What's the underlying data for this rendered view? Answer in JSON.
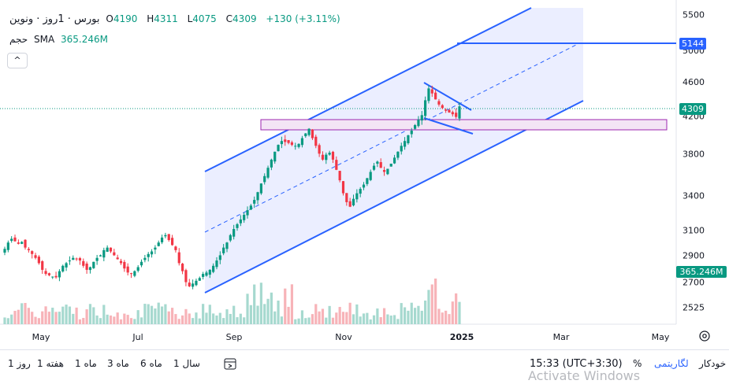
{
  "header": {
    "symbol": "بورس · 1روز · ونوین",
    "ohlc": {
      "O": "4190",
      "H": "4311",
      "L": "4075",
      "C": "4309"
    },
    "change": "+130 (+3.11%)",
    "volume_label": "حجم",
    "sma_label": "SMA",
    "sma_value": "365.246M",
    "toggle_glyph": "^"
  },
  "price_axis": {
    "ticks": [
      "5500",
      "5000",
      "4600",
      "4200",
      "3800",
      "3400",
      "3100",
      "2900",
      "2700",
      "2525"
    ],
    "last_price_label": "4309",
    "target_label": "5144",
    "volume_label": "365.246M"
  },
  "time_axis": {
    "ticks": [
      "May",
      "Jul",
      "Sep",
      "Nov",
      "2025",
      "Mar",
      "May"
    ]
  },
  "bottom_bar": {
    "timeframes": [
      "1 روز",
      "1 هفته",
      "1 ماه",
      "3 ماه",
      "6 ماه",
      "1 سال"
    ],
    "time": "15:33 (UTC+3:30)",
    "percent": "%",
    "log": "لگاریتمی",
    "auto": "خودکار"
  },
  "watermark": "Activate Windows",
  "colors": {
    "up": "#089981",
    "down": "#f23645",
    "channel": "#2962ff",
    "channel_fill": "#e8ebff",
    "zone_fill": "#f3e5f5",
    "zone_stroke": "#9c27b0",
    "last_price_line": "#089981"
  },
  "chart_data": {
    "type": "candlestick",
    "x_ticks": [
      "May",
      "Jul",
      "Sep",
      "Nov",
      "2025",
      "Mar",
      "May"
    ],
    "y_scale": "log",
    "ylim": [
      2450,
      5600
    ],
    "y_ticks": [
      5500,
      5000,
      4600,
      4200,
      3800,
      3400,
      3100,
      2900,
      2700,
      2525
    ],
    "last": {
      "open": 4190,
      "high": 4311,
      "low": 4075,
      "close": 4309,
      "change": 130,
      "change_pct": 3.11
    },
    "target_level": 5144,
    "closes": [
      2950,
      3000,
      3030,
      3010,
      2990,
      3005,
      2960,
      2940,
      2910,
      2880,
      2840,
      2790,
      2760,
      2750,
      2740,
      2735,
      2780,
      2820,
      2840,
      2860,
      2880,
      2870,
      2860,
      2820,
      2790,
      2810,
      2850,
      2880,
      2900,
      2940,
      2960,
      2930,
      2900,
      2870,
      2840,
      2800,
      2770,
      2760,
      2780,
      2810,
      2850,
      2880,
      2910,
      2930,
      2960,
      3000,
      3040,
      3060,
      3020,
      2980,
      2940,
      2840,
      2780,
      2700,
      2670,
      2690,
      2710,
      2730,
      2760,
      2770,
      2790,
      2820,
      2860,
      2900,
      2960,
      3000,
      3060,
      3110,
      3150,
      3190,
      3230,
      3270,
      3310,
      3360,
      3430,
      3510,
      3580,
      3660,
      3740,
      3820,
      3890,
      3930,
      3920,
      3910,
      3890,
      3880,
      3900,
      3960,
      4010,
      4060,
      3960,
      3880,
      3800,
      3740,
      3790,
      3810,
      3740,
      3640,
      3540,
      3420,
      3340,
      3300,
      3370,
      3420,
      3460,
      3500,
      3560,
      3620,
      3680,
      3720,
      3660,
      3620,
      3650,
      3700,
      3760,
      3820,
      3880,
      3930,
      3990,
      4040,
      4100,
      4160,
      4210,
      4380,
      4520,
      4460,
      4390,
      4330,
      4290,
      4260,
      4240,
      4220,
      4190,
      4309
    ],
    "volume_sma": "365.246M"
  }
}
